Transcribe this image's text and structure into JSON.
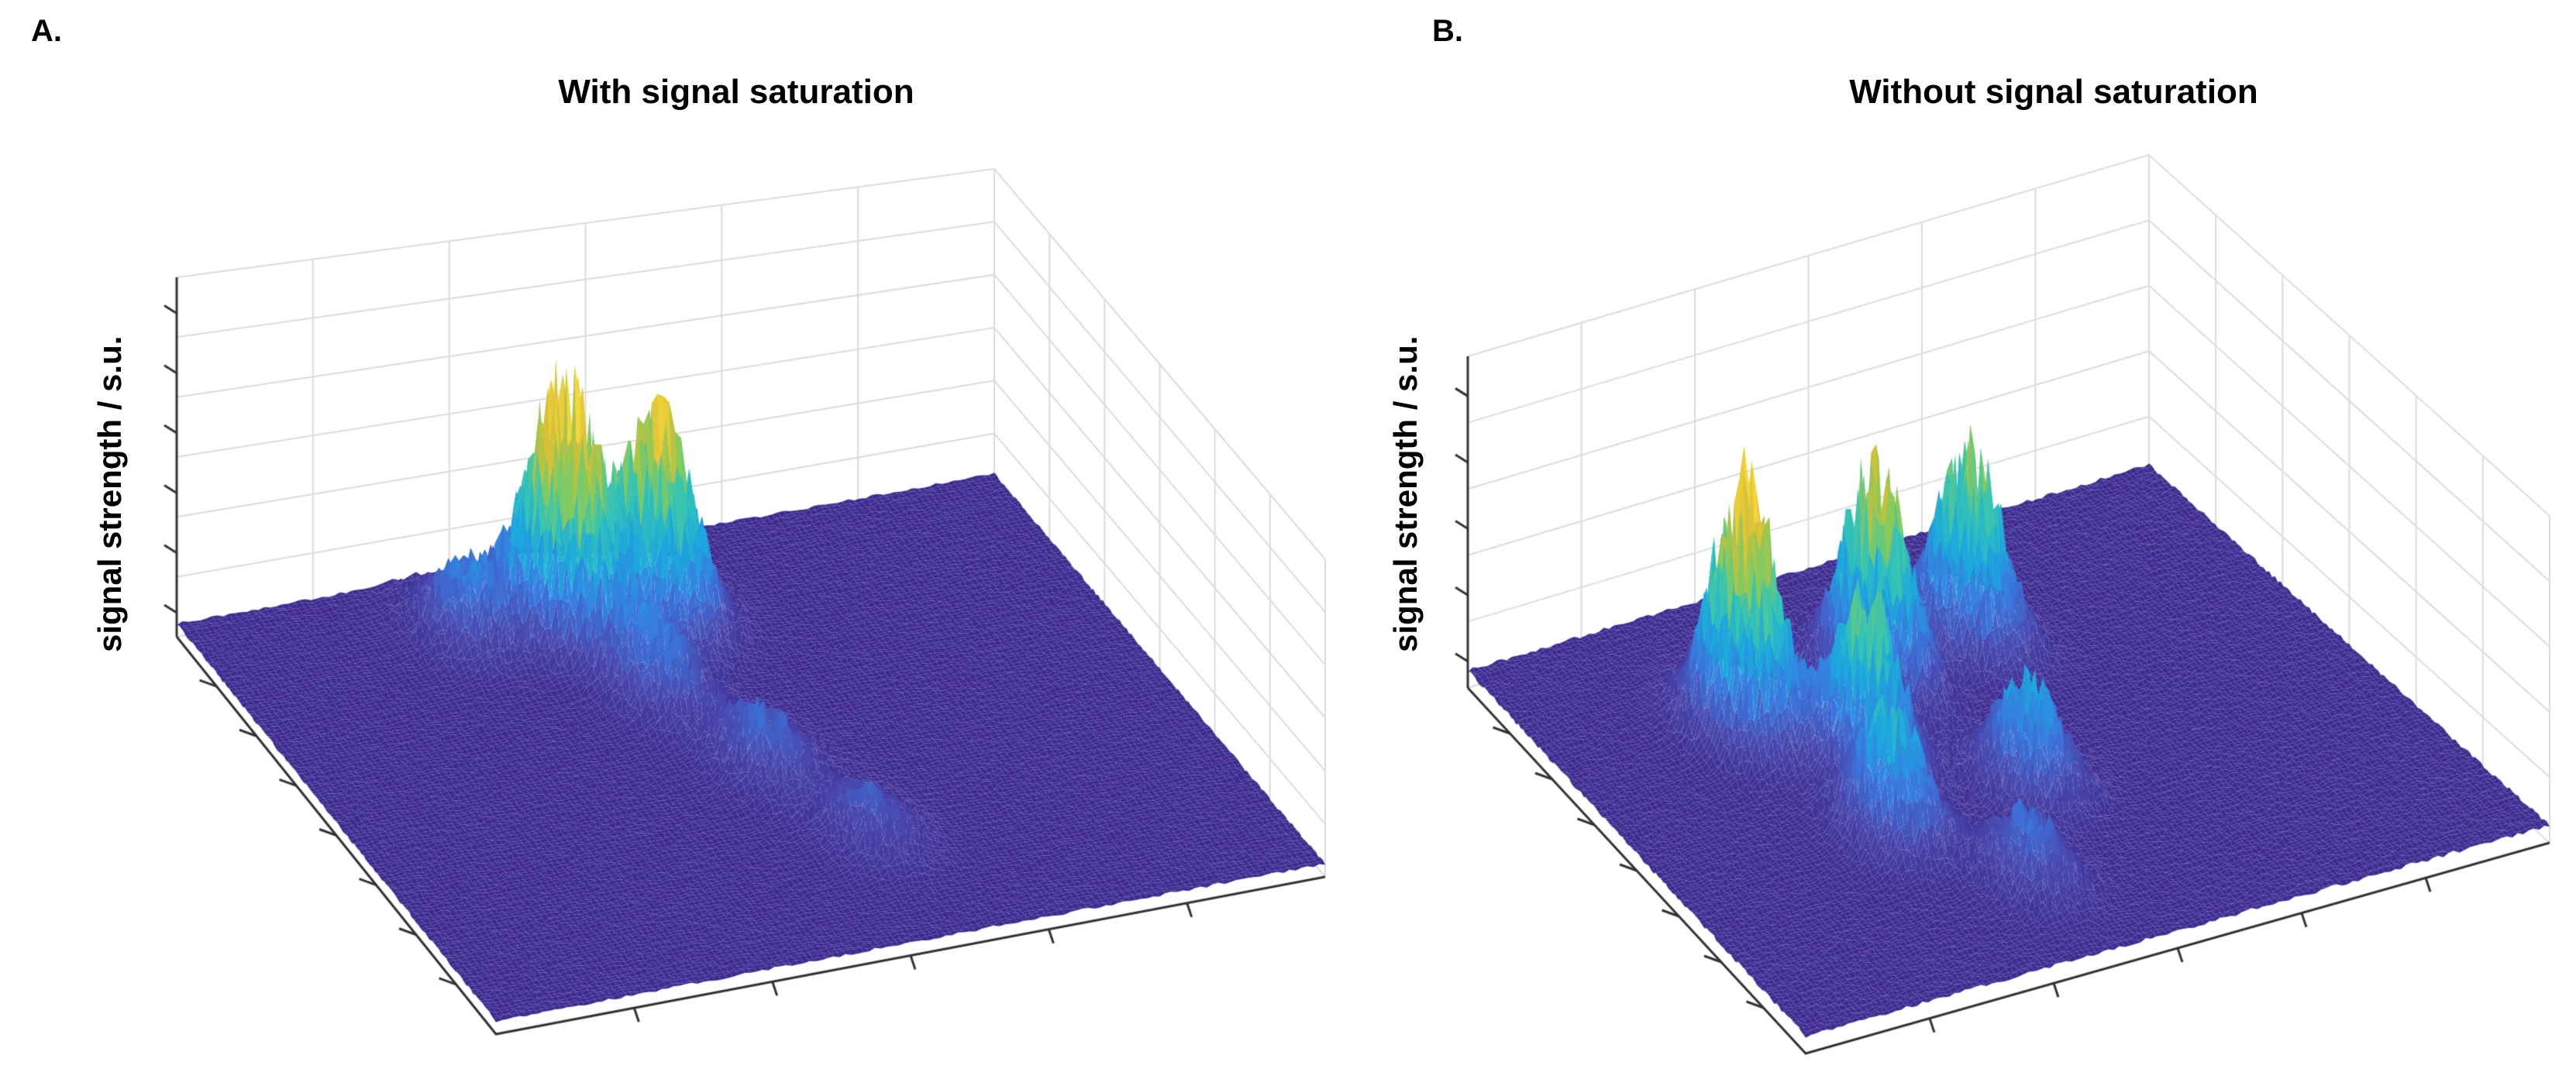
{
  "chart_data": [
    {
      "panel": "A.",
      "type": "surface",
      "title": "With signal saturation",
      "zlabel": "signal strength / s.u.",
      "xlabel": "",
      "ylabel": "",
      "zlim": [
        0,
        6
      ],
      "x_range": [
        0,
        1
      ],
      "y_range": [
        0,
        1
      ],
      "colormap": [
        "#3e2a8f",
        "#4a4ab0",
        "#3a7ae0",
        "#1ca9df",
        "#35c5b6",
        "#8acb5a",
        "#d3bf38",
        "#f7d63a"
      ],
      "baseline": 0.25,
      "peaks": [
        {
          "x": 0.52,
          "y": 0.18,
          "height": 3.5
        },
        {
          "x": 0.42,
          "y": 0.17,
          "height": 2.6
        },
        {
          "x": 0.4,
          "y": 0.14,
          "height": 1.8
        },
        {
          "x": 0.3,
          "y": 0.14,
          "height": 1.2
        },
        {
          "x": 0.45,
          "y": 0.35,
          "height": 1.2
        },
        {
          "x": 0.5,
          "y": 0.55,
          "height": 1.0
        },
        {
          "x": 0.55,
          "y": 0.75,
          "height": 0.8
        }
      ]
    },
    {
      "panel": "B.",
      "type": "surface",
      "title": "Without signal saturation",
      "zlabel": "signal strength / s.u.",
      "xlabel": "",
      "ylabel": "",
      "zlim": [
        0,
        5
      ],
      "x_range": [
        0,
        1
      ],
      "y_range": [
        0,
        1
      ],
      "colormap": [
        "#3e2a8f",
        "#4a4ab0",
        "#3a7ae0",
        "#1ca9df",
        "#35c5b6",
        "#8acb5a",
        "#d3bf38",
        "#f7d63a"
      ],
      "baseline": 0.25,
      "peaks": [
        {
          "x": 0.25,
          "y": 0.3,
          "height": 3.3
        },
        {
          "x": 0.45,
          "y": 0.28,
          "height": 2.8
        },
        {
          "x": 0.6,
          "y": 0.25,
          "height": 2.5
        },
        {
          "x": 0.35,
          "y": 0.45,
          "height": 2.2
        },
        {
          "x": 0.3,
          "y": 0.62,
          "height": 1.6
        },
        {
          "x": 0.5,
          "y": 0.6,
          "height": 1.4
        },
        {
          "x": 0.4,
          "y": 0.8,
          "height": 0.9
        }
      ]
    }
  ]
}
